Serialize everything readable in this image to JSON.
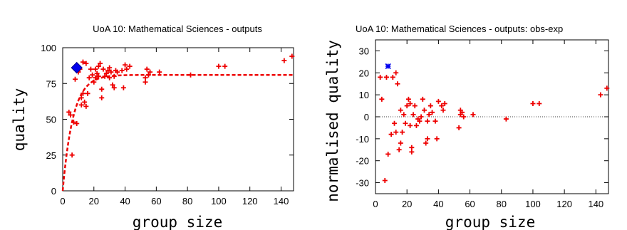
{
  "chart_data": [
    {
      "type": "scatter",
      "title": "UoA 10: Mathematical Sciences - outputs",
      "xlabel": "group size",
      "ylabel": "quality",
      "xlim": [
        0,
        148
      ],
      "ylim": [
        0,
        100
      ],
      "xticks": [
        "0",
        "20",
        "40",
        "60",
        "80",
        "100",
        "120",
        "140"
      ],
      "yticks": [
        "0",
        "25",
        "50",
        "75",
        "100"
      ],
      "grid": false,
      "colors": {
        "points": "#ee0000",
        "fit": "#ee0000",
        "highlight": "#0000ee"
      },
      "series": [
        {
          "marker": "plus",
          "points": [
            [
              4,
              55
            ],
            [
              5,
              53
            ],
            [
              6,
              25
            ],
            [
              7,
              48
            ],
            [
              8,
              78
            ],
            [
              9,
              47
            ],
            [
              10,
              83
            ],
            [
              11,
              85
            ],
            [
              12,
              65
            ],
            [
              12,
              60
            ],
            [
              13,
              90
            ],
            [
              13,
              68
            ],
            [
              14,
              62
            ],
            [
              15,
              59
            ],
            [
              15,
              89
            ],
            [
              16,
              68
            ],
            [
              17,
              79
            ],
            [
              18,
              85
            ],
            [
              19,
              81
            ],
            [
              20,
              76
            ],
            [
              21,
              79
            ],
            [
              21,
              85
            ],
            [
              22,
              82
            ],
            [
              23,
              87
            ],
            [
              23,
              80
            ],
            [
              24,
              89
            ],
            [
              25,
              65
            ],
            [
              25,
              71
            ],
            [
              26,
              85
            ],
            [
              27,
              80
            ],
            [
              28,
              82
            ],
            [
              29,
              84
            ],
            [
              30,
              86
            ],
            [
              30,
              79
            ],
            [
              31,
              83
            ],
            [
              32,
              74
            ],
            [
              33,
              72
            ],
            [
              33,
              80
            ],
            [
              34,
              84
            ],
            [
              35,
              83
            ],
            [
              38,
              84
            ],
            [
              39,
              72
            ],
            [
              40,
              88
            ],
            [
              41,
              85
            ],
            [
              43,
              87
            ],
            [
              53,
              76
            ],
            [
              53,
              79
            ],
            [
              54,
              85
            ],
            [
              55,
              81
            ],
            [
              56,
              83
            ],
            [
              62,
              83
            ],
            [
              82,
              81
            ],
            [
              100,
              87
            ],
            [
              104,
              87
            ],
            [
              142,
              91
            ],
            [
              147,
              94
            ]
          ]
        },
        {
          "marker": "diamond",
          "points": [
            [
              9,
              86
            ]
          ]
        }
      ],
      "fit": {
        "type": "dashed-curve",
        "plateau": 81,
        "rate": 0.15
      }
    },
    {
      "type": "scatter",
      "title": "UoA 10: Mathematical Sciences - outputs: obs-exp",
      "xlabel": "group size",
      "ylabel": "normalised quality",
      "xlim": [
        0,
        148
      ],
      "ylim": [
        -35,
        35
      ],
      "xticks": [
        "0",
        "20",
        "40",
        "60",
        "80",
        "100",
        "120",
        "140"
      ],
      "yticks": [
        "-30",
        "-20",
        "-10",
        "0",
        "10",
        "20",
        "30"
      ],
      "zero_line": true,
      "grid": false,
      "colors": {
        "points": "#ee0000",
        "highlight": "#0000ee"
      },
      "series": [
        {
          "marker": "plus",
          "points": [
            [
              3,
              18
            ],
            [
              4,
              8
            ],
            [
              6,
              -29
            ],
            [
              7,
              18
            ],
            [
              8,
              -17
            ],
            [
              10,
              -8
            ],
            [
              11,
              18
            ],
            [
              12,
              -3
            ],
            [
              13,
              20
            ],
            [
              13,
              -7
            ],
            [
              14,
              15
            ],
            [
              15,
              -15
            ],
            [
              16,
              -12
            ],
            [
              16,
              3
            ],
            [
              17,
              -7
            ],
            [
              18,
              1
            ],
            [
              19,
              -3
            ],
            [
              20,
              5
            ],
            [
              21,
              8
            ],
            [
              22,
              -4
            ],
            [
              22,
              6
            ],
            [
              23,
              -16
            ],
            [
              23,
              -14
            ],
            [
              24,
              1
            ],
            [
              25,
              5
            ],
            [
              26,
              -4
            ],
            [
              27,
              -1
            ],
            [
              28,
              -2
            ],
            [
              29,
              0
            ],
            [
              30,
              8
            ],
            [
              31,
              3
            ],
            [
              32,
              -12
            ],
            [
              33,
              -10
            ],
            [
              33,
              -2
            ],
            [
              34,
              1
            ],
            [
              35,
              5
            ],
            [
              36,
              2
            ],
            [
              38,
              -2
            ],
            [
              39,
              -10
            ],
            [
              40,
              7
            ],
            [
              42,
              5
            ],
            [
              43,
              3
            ],
            [
              44,
              6
            ],
            [
              53,
              -5
            ],
            [
              54,
              1
            ],
            [
              54,
              3
            ],
            [
              55,
              2
            ],
            [
              56,
              0
            ],
            [
              62,
              1
            ],
            [
              83,
              -1
            ],
            [
              100,
              6
            ],
            [
              104,
              6
            ],
            [
              143,
              10
            ],
            [
              147,
              13
            ]
          ]
        },
        {
          "marker": "star",
          "points": [
            [
              8,
              23
            ]
          ]
        }
      ]
    }
  ]
}
